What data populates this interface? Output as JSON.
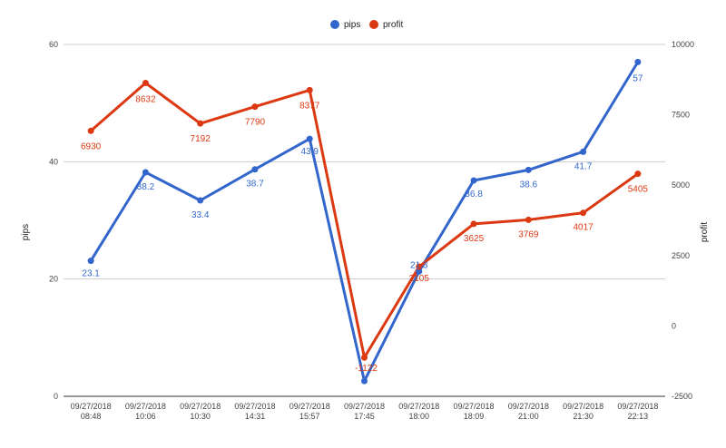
{
  "chart_data": {
    "type": "line",
    "categories": [
      [
        "09/27/2018",
        "08:48"
      ],
      [
        "09/27/2018",
        "10:06"
      ],
      [
        "09/27/2018",
        "10:30"
      ],
      [
        "09/27/2018",
        "14:31"
      ],
      [
        "09/27/2018",
        "15:57"
      ],
      [
        "09/27/2018",
        "17:45"
      ],
      [
        "09/27/2018",
        "18:00"
      ],
      [
        "09/27/2018",
        "18:09"
      ],
      [
        "09/27/2018",
        "21:00"
      ],
      [
        "09/27/2018",
        "21:30"
      ],
      [
        "09/27/2018",
        "22:13"
      ]
    ],
    "series": [
      {
        "name": "pips",
        "axis": "left",
        "color": "#3366cc",
        "values": [
          23.1,
          38.2,
          33.4,
          38.7,
          43.9,
          2.6,
          21.3,
          36.8,
          38.6,
          41.7,
          57
        ],
        "labels": [
          "23.1",
          "38.2",
          "33.4",
          "38.7",
          "43.9",
          "",
          "21.3",
          "36.8",
          "38.6",
          "41.7",
          "57"
        ]
      },
      {
        "name": "profit",
        "axis": "right",
        "color": "#dc3912",
        "values": [
          6930,
          8632,
          7192,
          7790,
          8377,
          -1122,
          2105,
          3625,
          3769,
          4017,
          5405
        ],
        "labels": [
          "6930",
          "8632",
          "7192",
          "7790",
          "8377",
          "-1122",
          "2105",
          "3625",
          "3769",
          "4017",
          "5405"
        ]
      }
    ],
    "ylabel": "pips",
    "y2label": "profit",
    "ylim": [
      0,
      60
    ],
    "yticks": [
      "0",
      "20",
      "40",
      "60"
    ],
    "y2lim": [
      -2500,
      10000
    ],
    "y2ticks": [
      "-2500",
      "0",
      "2500",
      "5000",
      "7500",
      "10000"
    ],
    "grid": true,
    "legend": "top"
  }
}
